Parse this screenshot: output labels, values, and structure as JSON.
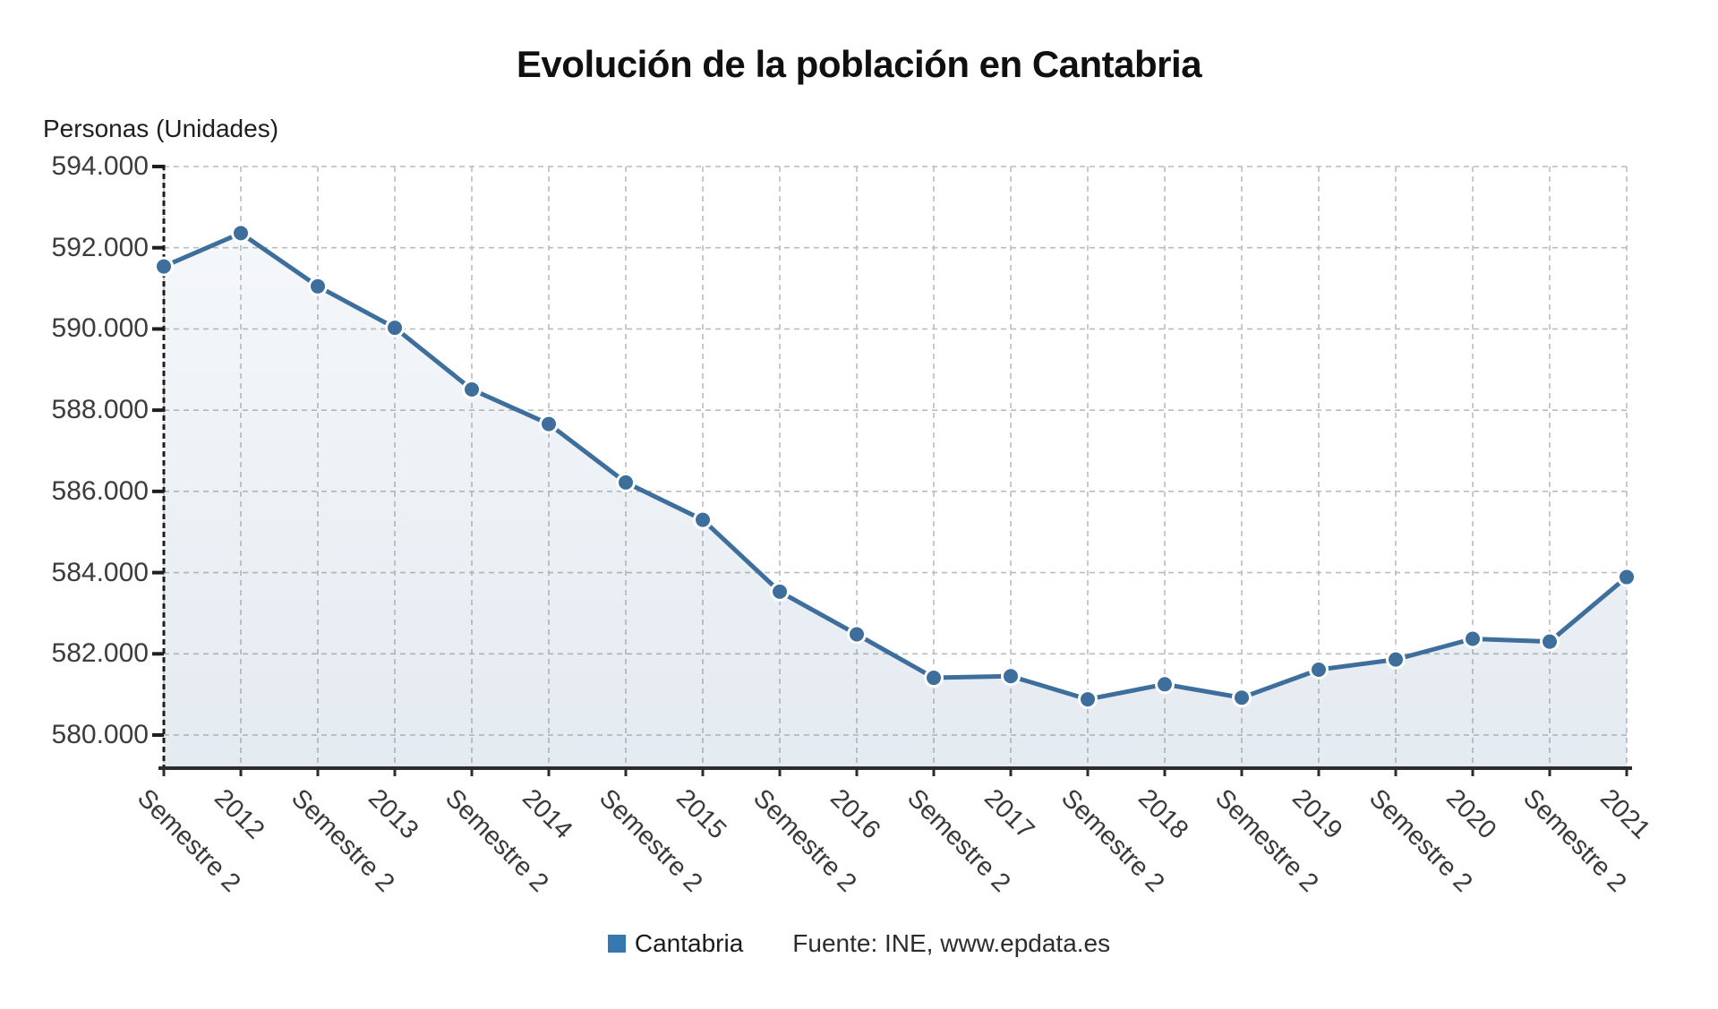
{
  "header": {
    "title": "Evolución de la población en Cantabria"
  },
  "legend": {
    "series_label": "Cantabria",
    "source_text": "Fuente: INE, www.epdata.es",
    "swatch_color": "#3778b0"
  },
  "chart_data": {
    "type": "line",
    "title": "Evolución de la población en Cantabria",
    "ylabel": "Personas (Unidades)",
    "xlabel": "",
    "categories": [
      "Semestre 2",
      "2012",
      "Semestre 2",
      "2013",
      "Semestre 2",
      "2014",
      "Semestre 2",
      "2015",
      "Semestre 2",
      "2016",
      "Semestre 2",
      "2017",
      "Semestre 2",
      "2018",
      "Semestre 2",
      "2019",
      "Semestre 2",
      "2020",
      "Semestre 2",
      "2021"
    ],
    "series": [
      {
        "name": "Cantabria",
        "values": [
          591540,
          592360,
          591050,
          590030,
          588510,
          587660,
          586220,
          585300,
          583530,
          582480,
          581410,
          581450,
          580880,
          581250,
          580920,
          581610,
          581860,
          582370,
          582300,
          583890
        ]
      }
    ],
    "y_ticks": {
      "labels": [
        "594.000",
        "592.000",
        "590.000",
        "588.000",
        "586.000",
        "584.000",
        "582.000",
        "580.000"
      ],
      "values": [
        594000,
        592000,
        590000,
        588000,
        586000,
        584000,
        582000,
        580000
      ]
    },
    "ylim": [
      580000,
      594000
    ],
    "grid": "dashed",
    "legend_position": "bottom",
    "line_color": "#3d6e9c",
    "marker": "circle",
    "area_fill": true,
    "area_fill_top": "rgba(61,110,156,0.05)",
    "area_fill_bottom": "rgba(61,110,156,0.14)"
  }
}
